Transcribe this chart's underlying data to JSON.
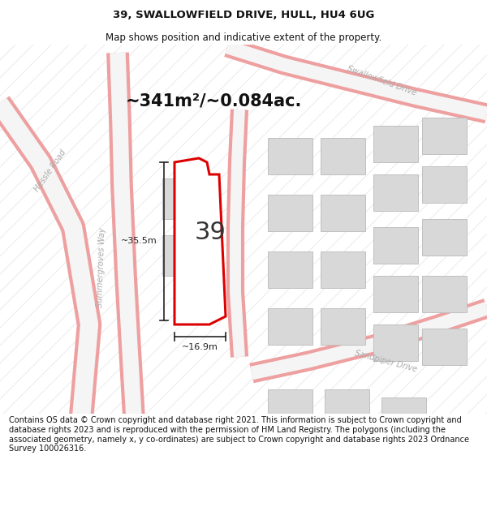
{
  "title_line1": "39, SWALLOWFIELD DRIVE, HULL, HU4 6UG",
  "title_line2": "Map shows position and indicative extent of the property.",
  "area_text": "~341m²/~0.084ac.",
  "property_number": "39",
  "dim_vertical": "~35.5m",
  "dim_horizontal": "~16.9m",
  "footer_text": "Contains OS data © Crown copyright and database right 2021. This information is subject to Crown copyright and database rights 2023 and is reproduced with the permission of HM Land Registry. The polygons (including the associated geometry, namely x, y co-ordinates) are subject to Crown copyright and database rights 2023 Ordnance Survey 100026316.",
  "map_bg": "#f7f7f7",
  "property_fill": "#ffffff",
  "property_edge": "#dd0000",
  "road_pink": "#f0a0a0",
  "road_gray": "#c8c8c8",
  "block_fill": "#d8d8d8",
  "block_edge": "#bbbbbb",
  "dim_line_color": "#222222",
  "text_dark": "#333333",
  "road_label_color": "#aaaaaa",
  "title_fontsize": 9.5,
  "subtitle_fontsize": 8.5,
  "area_fontsize": 15,
  "num_fontsize": 22,
  "dim_fontsize": 8,
  "road_label_fontsize": 7,
  "footer_fontsize": 7
}
